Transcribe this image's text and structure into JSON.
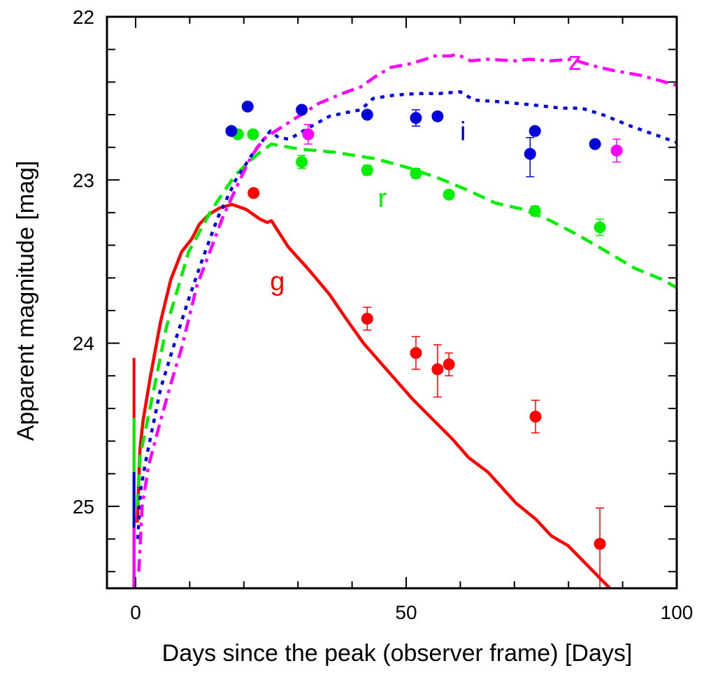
{
  "chart_data": {
    "type": "line",
    "title": "",
    "xlabel": "Days since the peak (observer frame) [Days]",
    "ylabel": "Apparent magnitude [mag]",
    "xlim": [
      -5.5,
      100
    ],
    "ylim": [
      25.5,
      22
    ],
    "y_inverted": true,
    "grid": false,
    "legend": "none (inline curve labels)",
    "x_ticks": [
      0,
      50,
      100
    ],
    "x_tick_labels": [
      "0",
      "50",
      "100"
    ],
    "x_minor_step": 10,
    "y_ticks": [
      22,
      23,
      24,
      25
    ],
    "y_tick_labels": [
      "22",
      "23",
      "24",
      "25"
    ],
    "y_minor_step": 0.2,
    "colors": {
      "g": "#ff0000",
      "r": "#00ee00",
      "i": "#0000dd",
      "z": "#ff00ff"
    },
    "series": [
      {
        "name": "g",
        "kind": "model",
        "style": "solid",
        "label": "g",
        "label_at": [
          26.2,
          23.62
        ],
        "vertical_start": {
          "x": -0.3,
          "from": 24.09,
          "to": 25.5
        },
        "points": [
          [
            0.3,
            25.1
          ],
          [
            0.8,
            24.65
          ],
          [
            1.4,
            24.47
          ],
          [
            2.7,
            24.21
          ],
          [
            4.6,
            23.87
          ],
          [
            6.5,
            23.61
          ],
          [
            8.5,
            23.44
          ],
          [
            10.4,
            23.36
          ],
          [
            11.8,
            23.27
          ],
          [
            13.6,
            23.21
          ],
          [
            15.6,
            23.17
          ],
          [
            17.8,
            23.15
          ],
          [
            20.4,
            23.18
          ],
          [
            23.0,
            23.24
          ],
          [
            24.3,
            23.26
          ],
          [
            25.1,
            23.25
          ],
          [
            28.2,
            23.41
          ],
          [
            32.0,
            23.55
          ],
          [
            35.8,
            23.7
          ],
          [
            38.9,
            23.85
          ],
          [
            42.1,
            24.0
          ],
          [
            46.6,
            24.17
          ],
          [
            51.1,
            24.34
          ],
          [
            55.0,
            24.47
          ],
          [
            58.6,
            24.59
          ],
          [
            61.5,
            24.7
          ],
          [
            65.1,
            24.79
          ],
          [
            70.3,
            24.98
          ],
          [
            74.0,
            25.08
          ],
          [
            76.8,
            25.18
          ],
          [
            79.9,
            25.24
          ],
          [
            87.6,
            25.5
          ]
        ]
      },
      {
        "name": "r",
        "kind": "model",
        "style": "dashed",
        "label": "r",
        "label_at": [
          45.6,
          23.11
        ],
        "vertical_start": {
          "x": -0.3,
          "from": 24.46,
          "to": 25.5
        },
        "points": [
          [
            0.3,
            25.0
          ],
          [
            0.8,
            24.7
          ],
          [
            1.7,
            24.55
          ],
          [
            3.4,
            24.28
          ],
          [
            5.7,
            23.9
          ],
          [
            9.8,
            23.44
          ],
          [
            13.9,
            23.19
          ],
          [
            18.4,
            22.97
          ],
          [
            22.6,
            22.84
          ],
          [
            25.1,
            22.78
          ],
          [
            30.2,
            22.81
          ],
          [
            36.7,
            22.83
          ],
          [
            44.4,
            22.87
          ],
          [
            50.9,
            22.93
          ],
          [
            56.1,
            22.99
          ],
          [
            61.2,
            23.06
          ],
          [
            66.4,
            23.14
          ],
          [
            71.6,
            23.18
          ],
          [
            76.7,
            23.25
          ],
          [
            81.9,
            23.34
          ],
          [
            87.1,
            23.44
          ],
          [
            92.2,
            23.54
          ],
          [
            97.3,
            23.61
          ],
          [
            100,
            23.66
          ]
        ]
      },
      {
        "name": "i",
        "kind": "model",
        "style": "dotted",
        "label": "i",
        "label_at": [
          60.5,
          22.7
        ],
        "vertical_start": {
          "x": -0.3,
          "from": 24.79,
          "to": 25.5
        },
        "points": [
          [
            0.4,
            25.2
          ],
          [
            0.9,
            24.9
          ],
          [
            2.0,
            24.7
          ],
          [
            4.6,
            24.28
          ],
          [
            7.1,
            24.01
          ],
          [
            9.7,
            23.74
          ],
          [
            12.3,
            23.49
          ],
          [
            15.2,
            23.23
          ],
          [
            18.5,
            23.0
          ],
          [
            21.8,
            22.83
          ],
          [
            24.9,
            22.7
          ],
          [
            26.4,
            22.74
          ],
          [
            28.4,
            22.75
          ],
          [
            32.0,
            22.68
          ],
          [
            35.8,
            22.61
          ],
          [
            38.5,
            22.59
          ],
          [
            41.6,
            22.57
          ],
          [
            43.9,
            22.5
          ],
          [
            47.8,
            22.48
          ],
          [
            52.2,
            22.47
          ],
          [
            56.1,
            22.47
          ],
          [
            60.0,
            22.46
          ],
          [
            62.5,
            22.51
          ],
          [
            66.9,
            22.52
          ],
          [
            73.4,
            22.54
          ],
          [
            78.6,
            22.56
          ],
          [
            82.4,
            22.56
          ],
          [
            86.3,
            22.6
          ],
          [
            91.5,
            22.67
          ],
          [
            96.6,
            22.73
          ],
          [
            100,
            22.77
          ]
        ]
      },
      {
        "name": "z",
        "kind": "model",
        "style": "dashdot",
        "label": "z",
        "label_at": [
          81.2,
          22.27
        ],
        "vertical_start": {
          "x": -0.3,
          "from": 25.13,
          "to": 25.5
        },
        "points": [
          [
            0.6,
            25.4
          ],
          [
            1.2,
            25.0
          ],
          [
            2.4,
            24.75
          ],
          [
            4.4,
            24.5
          ],
          [
            6.5,
            24.25
          ],
          [
            8.5,
            24.03
          ],
          [
            11.3,
            23.65
          ],
          [
            13.6,
            23.45
          ],
          [
            16.2,
            23.22
          ],
          [
            19.4,
            22.99
          ],
          [
            21.3,
            22.86
          ],
          [
            23.6,
            22.75
          ],
          [
            24.9,
            22.72
          ],
          [
            28.7,
            22.64
          ],
          [
            33.9,
            22.53
          ],
          [
            39.0,
            22.46
          ],
          [
            41.6,
            22.43
          ],
          [
            44.6,
            22.36
          ],
          [
            47.2,
            22.31
          ],
          [
            50.4,
            22.29
          ],
          [
            53.6,
            22.26
          ],
          [
            54.9,
            22.24
          ],
          [
            58.1,
            22.24
          ],
          [
            59.4,
            22.23
          ],
          [
            61.9,
            22.27
          ],
          [
            65.1,
            22.26
          ],
          [
            70.3,
            22.27
          ],
          [
            72.8,
            22.26
          ],
          [
            76.7,
            22.27
          ],
          [
            80.6,
            22.26
          ],
          [
            84.5,
            22.3
          ],
          [
            88.4,
            22.33
          ],
          [
            93.5,
            22.36
          ],
          [
            100,
            22.42
          ]
        ]
      },
      {
        "name": "g obs",
        "kind": "observed",
        "color_of": "g",
        "points": [
          {
            "x": 21.8,
            "y": 23.08,
            "err": 0.0
          },
          {
            "x": 42.8,
            "y": 23.85,
            "err": 0.07
          },
          {
            "x": 51.8,
            "y": 24.06,
            "err": 0.1
          },
          {
            "x": 55.8,
            "y": 24.16,
            "err_low": 0.15,
            "err_high": 0.17
          },
          {
            "x": 57.9,
            "y": 24.13,
            "err": 0.07
          },
          {
            "x": 73.9,
            "y": 24.45,
            "err": 0.1
          },
          {
            "x": 85.8,
            "y": 25.23,
            "err_low": 0.22,
            "err_high": 0.27
          }
        ]
      },
      {
        "name": "r obs",
        "kind": "observed",
        "color_of": "r",
        "points": [
          {
            "x": 18.9,
            "y": 22.72,
            "err": 0.0
          },
          {
            "x": 21.7,
            "y": 22.72,
            "err": 0.0
          },
          {
            "x": 30.7,
            "y": 22.89,
            "err": 0.04
          },
          {
            "x": 42.8,
            "y": 22.94,
            "err": 0.03
          },
          {
            "x": 51.8,
            "y": 22.96,
            "err": 0.03
          },
          {
            "x": 57.9,
            "y": 23.09,
            "err": 0.0
          },
          {
            "x": 73.8,
            "y": 23.19,
            "err": 0.03
          },
          {
            "x": 85.8,
            "y": 23.29,
            "err": 0.05
          }
        ]
      },
      {
        "name": "i obs",
        "kind": "observed",
        "color_of": "i",
        "points": [
          {
            "x": 17.7,
            "y": 22.7,
            "err": 0.02
          },
          {
            "x": 20.7,
            "y": 22.55,
            "err": 0.02
          },
          {
            "x": 30.7,
            "y": 22.57,
            "err": 0.02
          },
          {
            "x": 42.8,
            "y": 22.6,
            "err": 0.02
          },
          {
            "x": 51.8,
            "y": 22.62,
            "err": 0.05
          },
          {
            "x": 55.8,
            "y": 22.61,
            "err": 0.02
          },
          {
            "x": 72.9,
            "y": 22.84,
            "err_low": 0.1,
            "err_high": 0.14
          },
          {
            "x": 73.8,
            "y": 22.7,
            "err": 0.0
          },
          {
            "x": 84.9,
            "y": 22.78,
            "err": 0.0
          }
        ]
      },
      {
        "name": "z obs",
        "kind": "observed",
        "color_of": "z",
        "points": [
          {
            "x": 31.9,
            "y": 22.72,
            "err": 0.06
          },
          {
            "x": 88.9,
            "y": 22.82,
            "err": 0.07
          }
        ]
      }
    ]
  }
}
